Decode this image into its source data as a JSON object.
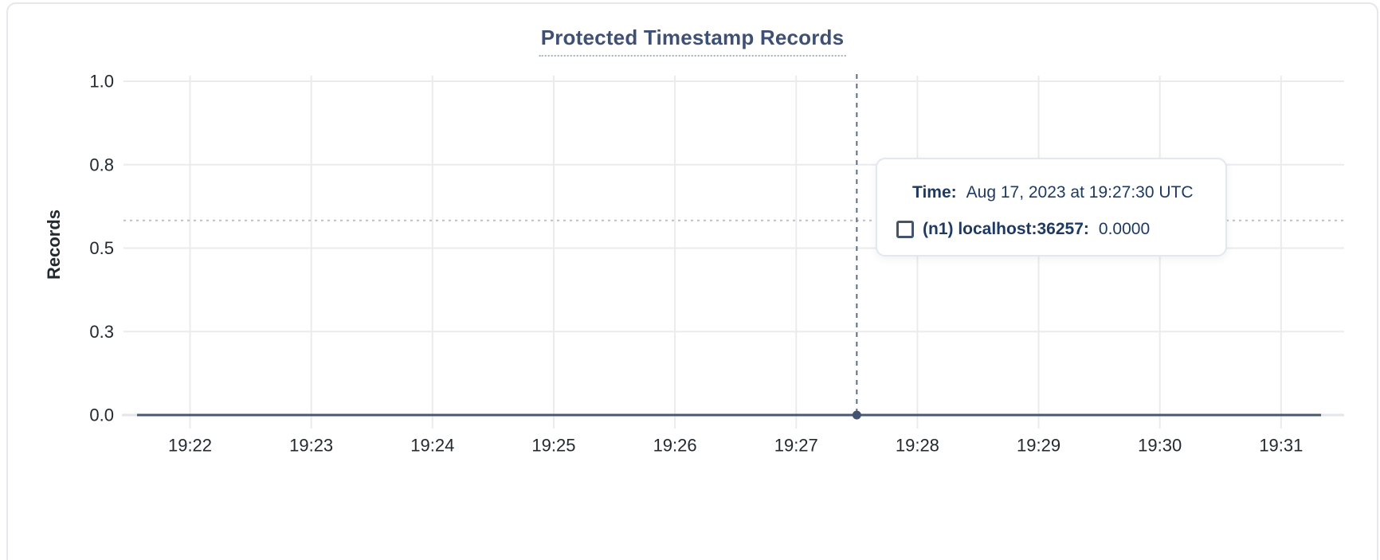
{
  "chart_data": {
    "type": "line",
    "title": "Protected Timestamp Records",
    "xlabel": "",
    "ylabel": "Records",
    "ylim": [
      0,
      1
    ],
    "grid": true,
    "y_tick_labels": [
      "0.0",
      "0.3",
      "0.5",
      "0.8",
      "1.0"
    ],
    "x_tick_labels": [
      "19:22",
      "19:23",
      "19:24",
      "19:25",
      "19:26",
      "19:27",
      "19:28",
      "19:29",
      "19:30",
      "19:31"
    ],
    "series": [
      {
        "name": "(n1) localhost:36257",
        "color": "#475872",
        "values": [
          0,
          0,
          0,
          0,
          0,
          0,
          0,
          0,
          0,
          0
        ]
      }
    ],
    "hover": {
      "time": "19:27:30",
      "value": 0,
      "cursor_y_frac": 0.583
    },
    "colors": {
      "line": "#475872",
      "point": "#42536f",
      "title": "#3e5174",
      "grid": "#ebebee",
      "axis_line": "#e2e5ea",
      "crosshair_vertical": "#5b6c88",
      "crosshair_horizontal": "#b7c0cc",
      "tick_text": "#24292f",
      "tooltip_text": "#1e3a63"
    }
  },
  "tooltip": {
    "time_label": "Time:",
    "time_value": "Aug 17, 2023 at 19:27:30 UTC",
    "series_label": "(n1) localhost:36257:",
    "series_value": "0.0000"
  }
}
